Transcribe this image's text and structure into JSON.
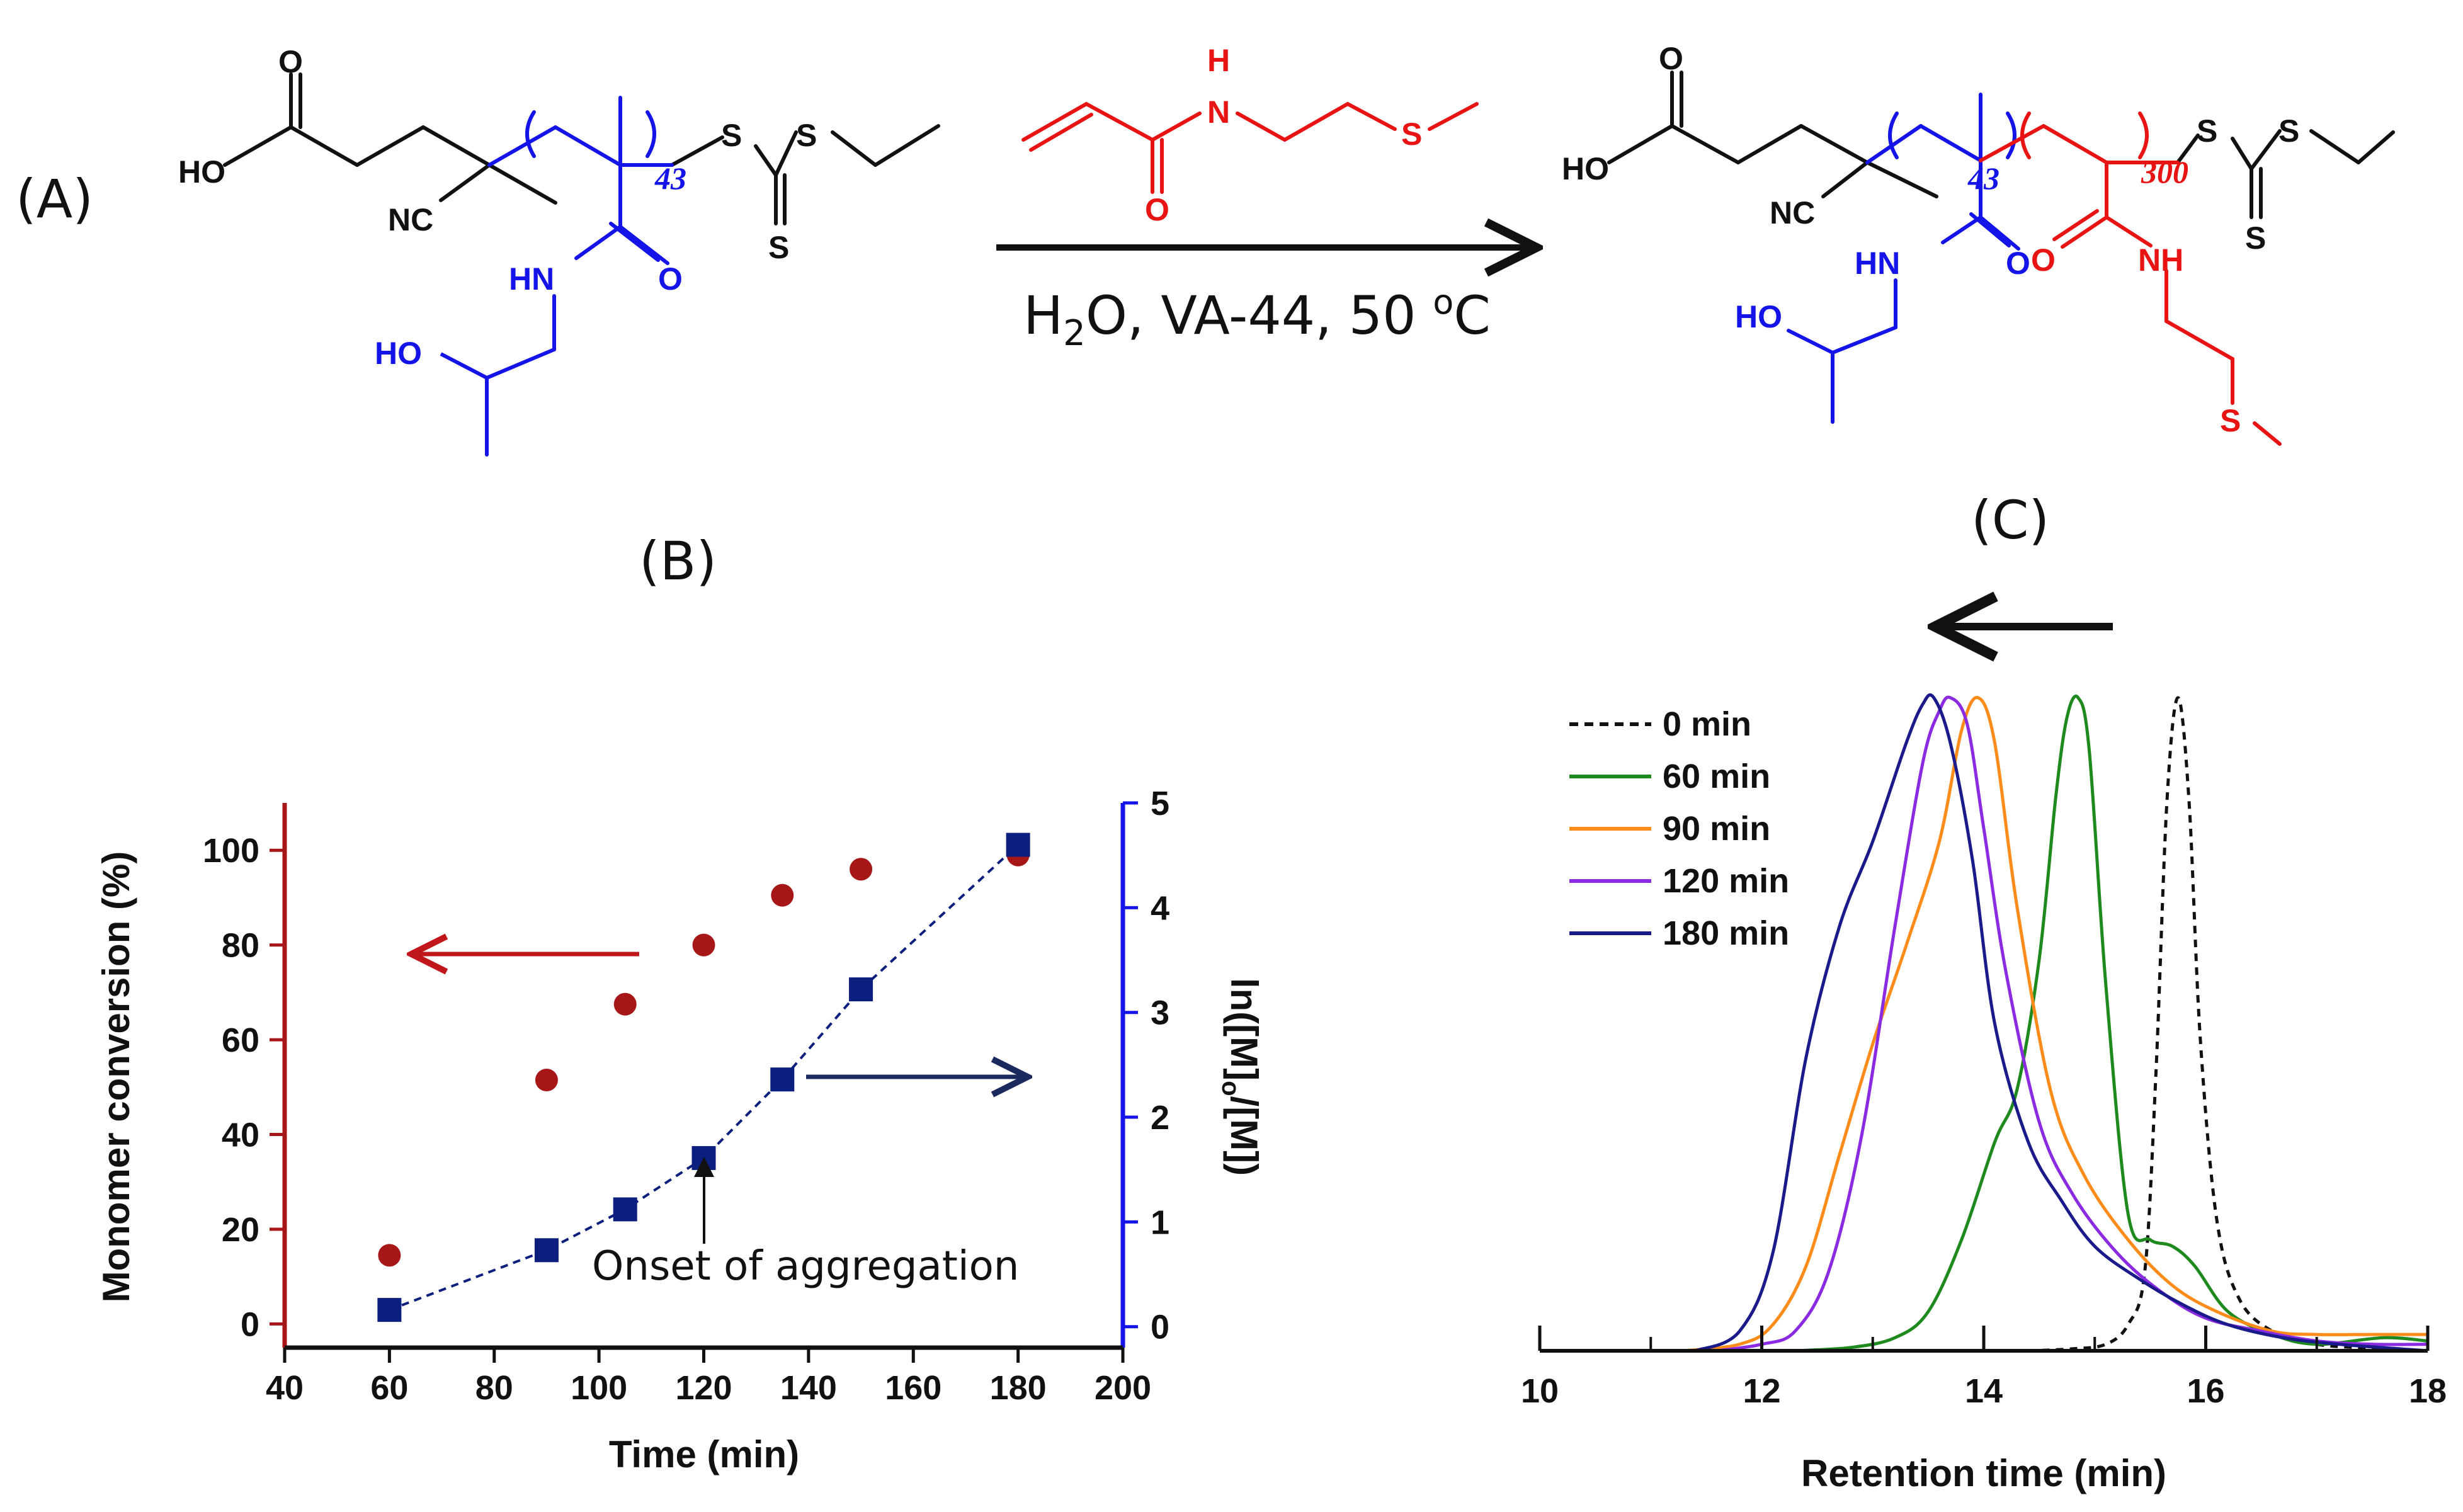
{
  "panel_labels": {
    "a": "(A)",
    "b": "(B)",
    "c": "(C)"
  },
  "scheme": {
    "reactant_polymer": {
      "atoms": {
        "oh_acid": "HO",
        "carbonyl_o": "O",
        "nitrile": "NC",
        "amide_nh": "HN",
        "amide_o": "O",
        "hydroxyl": "HO",
        "sulfur_1": "S",
        "sulfur_2": "S",
        "sulfur_3": "S"
      },
      "repeat_n": "43"
    },
    "monomer": {
      "atoms": {
        "nh": "H",
        "n": "N",
        "o": "O",
        "s": "S"
      }
    },
    "conditions_parts": {
      "reagent": "H",
      "sub": "2",
      "rest": "O, VA-44, 50 ",
      "deg": "o",
      "unit": "C"
    },
    "product_polymer": {
      "atoms": {
        "oh_acid": "HO",
        "carbonyl_o": "O",
        "nitrile": "NC",
        "amide_nh_blue": "HN",
        "amide_o_blue": "O",
        "hydroxyl": "HO",
        "amide_o_red": "O",
        "amide_nh_red": "NH",
        "sulfur_thioether": "S",
        "sulfur_1": "S",
        "sulfur_2": "S",
        "sulfur_3": "S"
      },
      "repeat_n_blue": "43",
      "repeat_n_red": "300"
    }
  },
  "colors": {
    "blue_block": "#1414e8",
    "red_block": "#e81414",
    "conversion": "#a81717",
    "ln_series": "#0c1f7e",
    "arrow_dark": "#1b2a5e",
    "black": "#111111"
  },
  "chart_data": [
    {
      "type": "scatter",
      "panel": "(B)",
      "xlabel": "Time (min)",
      "ylabel_left": "Monomer conversion (%)",
      "ylabel_right": "ln([M]o/[M])",
      "ylabel_right_parts": {
        "pre": "ln([M]",
        "sub": "o",
        "post": "/[M])"
      },
      "xlim": [
        40,
        200
      ],
      "ylim_left": [
        -5,
        110
      ],
      "ylim_right": [
        -0.2,
        5
      ],
      "xticks": [
        "40",
        "60",
        "80",
        "100",
        "120",
        "140",
        "160",
        "180",
        "200"
      ],
      "yticks_left": [
        "0",
        "20",
        "40",
        "60",
        "80",
        "100"
      ],
      "yticks_right": [
        "0",
        "1",
        "2",
        "3",
        "4",
        "5"
      ],
      "series": [
        {
          "name": "Monomer conversion (%)",
          "axis": "left",
          "marker": "circle",
          "x": [
            60,
            90,
            105,
            120,
            135,
            150,
            180
          ],
          "y": [
            14.5,
            51.5,
            67.5,
            80,
            90.5,
            96,
            99
          ]
        },
        {
          "name": "ln([M]o/[M])",
          "axis": "right",
          "marker": "square",
          "dashed_line": true,
          "x": [
            60,
            90,
            105,
            120,
            135,
            150,
            180
          ],
          "y": [
            0.16,
            0.73,
            1.12,
            1.61,
            2.36,
            3.22,
            4.6
          ]
        }
      ],
      "annotation": "Onset of aggregation"
    },
    {
      "type": "line",
      "panel": "(C)",
      "xlabel": "Retention time (min)",
      "xlim": [
        10,
        18
      ],
      "xticks": [
        "10",
        "12",
        "14",
        "16",
        "18"
      ],
      "ylim": [
        0,
        1
      ],
      "legend_position": "top-left",
      "series": [
        {
          "name": "0 min",
          "color": "#111111",
          "dashed": true,
          "peak": 15.75,
          "x": [
            14.4,
            14.8,
            15.1,
            15.3,
            15.45,
            15.55,
            15.65,
            15.75,
            15.85,
            15.95,
            16.1,
            16.3,
            16.6,
            17.0,
            17.5,
            18.0
          ],
          "y": [
            0.0,
            0.003,
            0.01,
            0.04,
            0.12,
            0.42,
            0.84,
            1.0,
            0.84,
            0.48,
            0.2,
            0.08,
            0.03,
            0.01,
            0.004,
            0.0
          ]
        },
        {
          "name": "60 min",
          "color": "#1e8a1e",
          "dashed": false,
          "peak": 14.85,
          "x": [
            12.3,
            12.8,
            13.2,
            13.5,
            13.8,
            14.1,
            14.3,
            14.5,
            14.65,
            14.75,
            14.85,
            14.95,
            15.1,
            15.3,
            15.5,
            15.7,
            15.9,
            16.2,
            16.6,
            17.0,
            17.6,
            18.0
          ],
          "y": [
            0.0,
            0.005,
            0.02,
            0.06,
            0.17,
            0.32,
            0.4,
            0.6,
            0.85,
            0.97,
            1.0,
            0.92,
            0.56,
            0.21,
            0.17,
            0.16,
            0.13,
            0.06,
            0.025,
            0.01,
            0.02,
            0.015
          ]
        },
        {
          "name": "90 min",
          "color": "#ff8c1a",
          "dashed": false,
          "peak": 13.95,
          "x": [
            11.3,
            11.8,
            12.1,
            12.4,
            12.7,
            13.0,
            13.3,
            13.6,
            13.8,
            13.95,
            14.1,
            14.3,
            14.6,
            14.9,
            15.3,
            15.7,
            16.1,
            16.6,
            17.0,
            17.5,
            18.0
          ],
          "y": [
            0.0,
            0.01,
            0.04,
            0.13,
            0.3,
            0.47,
            0.62,
            0.78,
            0.95,
            1.0,
            0.93,
            0.68,
            0.4,
            0.27,
            0.17,
            0.1,
            0.06,
            0.03,
            0.025,
            0.025,
            0.025
          ]
        },
        {
          "name": "120 min",
          "color": "#8a2be2",
          "dashed": false,
          "peak": 13.7,
          "x": [
            11.6,
            12.0,
            12.3,
            12.6,
            12.9,
            13.2,
            13.45,
            13.6,
            13.7,
            13.85,
            14.0,
            14.2,
            14.5,
            14.8,
            15.2,
            15.6,
            16.0,
            16.5,
            17.0,
            17.5,
            18.0
          ],
          "y": [
            0.0,
            0.01,
            0.03,
            0.12,
            0.33,
            0.65,
            0.9,
            0.98,
            1.0,
            0.96,
            0.8,
            0.58,
            0.35,
            0.24,
            0.15,
            0.09,
            0.05,
            0.03,
            0.015,
            0.01,
            0.01
          ]
        },
        {
          "name": "180 min",
          "color": "#1a1a8a",
          "dashed": false,
          "peak": 13.55,
          "x": [
            11.4,
            11.8,
            12.1,
            12.4,
            12.7,
            13.0,
            13.3,
            13.45,
            13.55,
            13.7,
            13.9,
            14.1,
            14.4,
            14.7,
            15.0,
            15.4,
            15.8,
            16.2,
            16.7,
            17.2,
            18.0
          ],
          "y": [
            0.0,
            0.03,
            0.15,
            0.45,
            0.65,
            0.78,
            0.93,
            0.99,
            1.0,
            0.93,
            0.75,
            0.5,
            0.32,
            0.23,
            0.16,
            0.11,
            0.07,
            0.04,
            0.02,
            0.01,
            0.0
          ]
        }
      ]
    }
  ]
}
